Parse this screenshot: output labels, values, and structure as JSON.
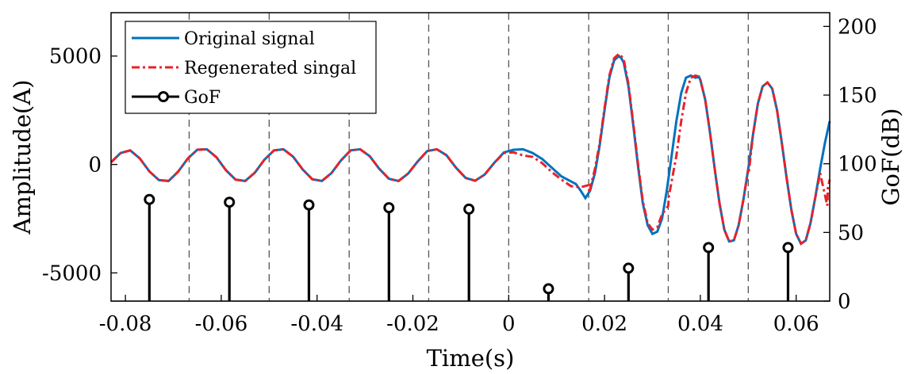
{
  "chart_data": {
    "type": "line",
    "xlabel": "Time(s)",
    "ylabel_left": "Amplitude(A)",
    "ylabel_right": "GoF(dB)",
    "xlim": [
      -0.083,
      0.067
    ],
    "ylim_left": [
      -6300,
      7000
    ],
    "ylim_right": [
      0,
      210
    ],
    "xticks": [
      -0.08,
      -0.06,
      -0.04,
      -0.02,
      0,
      0.02,
      0.04,
      0.06
    ],
    "xtick_labels": [
      "-0.08",
      "-0.06",
      "-0.04",
      "-0.02",
      "0",
      "0.02",
      "0.04",
      "0.06"
    ],
    "yticks_left": [
      -5000,
      0,
      5000
    ],
    "yticks_left_labels": [
      "-5000",
      "0",
      "5000"
    ],
    "yticks_right": [
      0,
      50,
      100,
      150,
      200
    ],
    "yticks_right_labels": [
      "0",
      "50",
      "100",
      "150",
      "200"
    ],
    "window_boundaries": [
      -0.0667,
      -0.05,
      -0.0333,
      -0.0167,
      0,
      0.0167,
      0.0333,
      0.05
    ],
    "legend_position": "top-left",
    "series": [
      {
        "name": "Original signal",
        "style": "solid",
        "color": "#0072BD",
        "x": [
          -0.083,
          -0.081,
          -0.079,
          -0.077,
          -0.075,
          -0.073,
          -0.071,
          -0.069,
          -0.067,
          -0.065,
          -0.063,
          -0.061,
          -0.059,
          -0.057,
          -0.055,
          -0.053,
          -0.051,
          -0.049,
          -0.047,
          -0.045,
          -0.043,
          -0.041,
          -0.039,
          -0.037,
          -0.035,
          -0.033,
          -0.031,
          -0.029,
          -0.027,
          -0.025,
          -0.023,
          -0.021,
          -0.019,
          -0.017,
          -0.015,
          -0.013,
          -0.011,
          -0.009,
          -0.007,
          -0.005,
          -0.003,
          -0.001,
          0.001,
          0.003,
          0.005,
          0.007,
          0.009,
          0.011,
          0.013,
          0.014,
          0.015,
          0.016,
          0.017,
          0.018,
          0.019,
          0.02,
          0.021,
          0.022,
          0.023,
          0.0235,
          0.024,
          0.025,
          0.026,
          0.027,
          0.028,
          0.029,
          0.03,
          0.031,
          0.032,
          0.033,
          0.034,
          0.035,
          0.036,
          0.037,
          0.038,
          0.039,
          0.0397,
          0.04,
          0.041,
          0.042,
          0.043,
          0.044,
          0.045,
          0.046,
          0.047,
          0.048,
          0.049,
          0.05,
          0.051,
          0.052,
          0.053,
          0.054,
          0.055,
          0.056,
          0.057,
          0.058,
          0.059,
          0.06,
          0.061,
          0.062,
          0.063,
          0.064,
          0.065,
          0.066,
          0.067
        ],
        "y": [
          100,
          530,
          650,
          280,
          -320,
          -720,
          -760,
          -330,
          270,
          680,
          700,
          330,
          -270,
          -700,
          -760,
          -380,
          220,
          650,
          700,
          360,
          -230,
          -680,
          -760,
          -400,
          190,
          650,
          700,
          380,
          -200,
          -660,
          -760,
          -420,
          140,
          620,
          700,
          430,
          -150,
          -620,
          -750,
          -460,
          80,
          560,
          680,
          700,
          530,
          250,
          -150,
          -550,
          -780,
          -900,
          -1200,
          -1550,
          -1200,
          -400,
          900,
          2500,
          4000,
          4800,
          5000,
          4900,
          4700,
          3600,
          1800,
          -100,
          -1800,
          -2800,
          -3200,
          -3100,
          -2500,
          -1200,
          400,
          2000,
          3300,
          4000,
          4100,
          4000,
          4050,
          3900,
          3000,
          1500,
          -200,
          -1800,
          -3000,
          -3550,
          -3500,
          -2800,
          -1600,
          -200,
          1400,
          2800,
          3600,
          3780,
          3500,
          2500,
          1000,
          -600,
          -2100,
          -3200,
          -3650,
          -3500,
          -2700,
          -1500,
          -200,
          1000,
          2000
        ]
      },
      {
        "name": "Regenerated singal",
        "style": "dash-dot",
        "color": "#E8222A",
        "x": [
          -0.083,
          -0.081,
          -0.079,
          -0.077,
          -0.075,
          -0.073,
          -0.071,
          -0.069,
          -0.067,
          -0.065,
          -0.063,
          -0.061,
          -0.059,
          -0.057,
          -0.055,
          -0.053,
          -0.051,
          -0.049,
          -0.047,
          -0.045,
          -0.043,
          -0.041,
          -0.039,
          -0.037,
          -0.035,
          -0.033,
          -0.031,
          -0.029,
          -0.027,
          -0.025,
          -0.023,
          -0.021,
          -0.019,
          -0.017,
          -0.015,
          -0.013,
          -0.011,
          -0.009,
          -0.007,
          -0.005,
          -0.003,
          -0.001,
          0.001,
          0.003,
          0.005,
          0.007,
          0.009,
          0.011,
          0.013,
          0.015,
          0.0167,
          0.0168,
          0.018,
          0.019,
          0.02,
          0.021,
          0.022,
          0.023,
          0.0235,
          0.024,
          0.025,
          0.026,
          0.027,
          0.028,
          0.029,
          0.03,
          0.031,
          0.032,
          0.0333,
          0.0334,
          0.035,
          0.036,
          0.037,
          0.038,
          0.039,
          0.0397,
          0.04,
          0.041,
          0.042,
          0.043,
          0.044,
          0.045,
          0.046,
          0.047,
          0.048,
          0.049,
          0.05,
          0.0501,
          0.051,
          0.052,
          0.053,
          0.054,
          0.055,
          0.056,
          0.057,
          0.058,
          0.059,
          0.06,
          0.061,
          0.062,
          0.063,
          0.064,
          0.065,
          0.0665,
          0.0666,
          0.067
        ],
        "y": [
          100,
          530,
          650,
          280,
          -320,
          -720,
          -760,
          -330,
          270,
          680,
          700,
          330,
          -270,
          -700,
          -760,
          -380,
          220,
          650,
          700,
          360,
          -230,
          -680,
          -760,
          -400,
          190,
          650,
          700,
          380,
          -200,
          -660,
          -760,
          -420,
          140,
          620,
          700,
          430,
          -150,
          -620,
          -750,
          -460,
          80,
          530,
          560,
          420,
          350,
          60,
          -350,
          -700,
          -1000,
          -1050,
          -950,
          -1300,
          -200,
          1000,
          2600,
          4100,
          4900,
          5100,
          4990,
          4850,
          3700,
          1900,
          0,
          -1700,
          -2700,
          -3000,
          -2900,
          -2300,
          -1900,
          -1500,
          400,
          2000,
          3300,
          4000,
          4100,
          4050,
          3900,
          3000,
          1500,
          -200,
          -1800,
          -3000,
          -3550,
          -3500,
          -2800,
          -1600,
          -200,
          -400,
          1400,
          2800,
          3600,
          3780,
          3500,
          2500,
          1000,
          -600,
          -2100,
          -3200,
          -3650,
          -3500,
          -2700,
          -1500,
          -400,
          -1900,
          -1100,
          -700
        ]
      },
      {
        "name": "GoF",
        "style": "stem",
        "color": "#000000",
        "axis": "right",
        "x": [
          -0.075,
          -0.0583,
          -0.0417,
          -0.025,
          -0.0083,
          0.0083,
          0.025,
          0.0417,
          0.0583
        ],
        "y": [
          74,
          72,
          70,
          68,
          67,
          9,
          24,
          39,
          39
        ]
      }
    ]
  }
}
